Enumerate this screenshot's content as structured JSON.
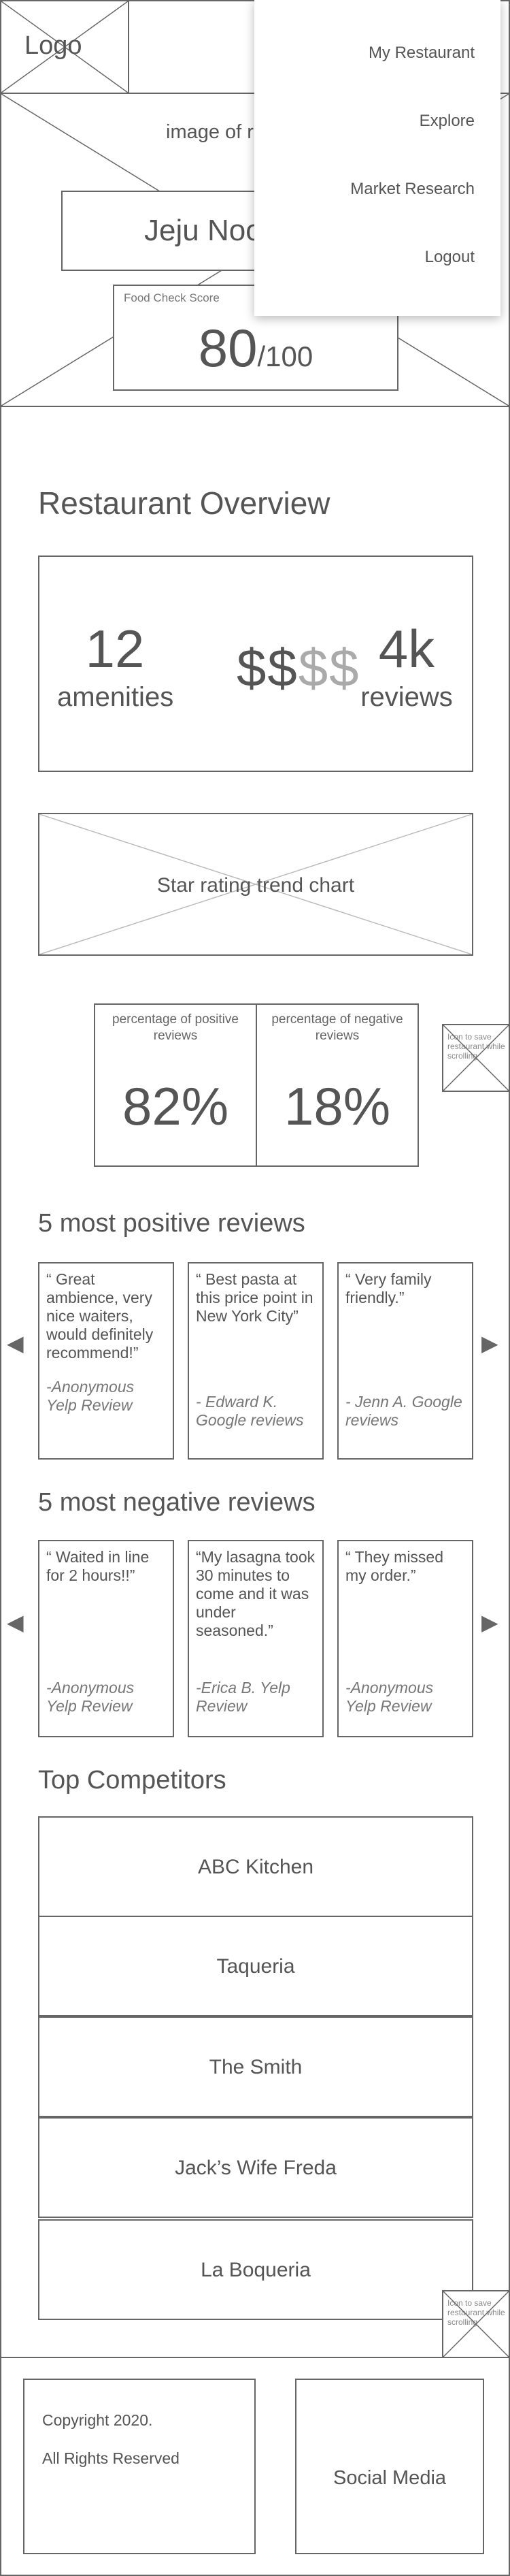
{
  "header": {
    "logo": "Logo",
    "hero_caption": "image of restaurant",
    "restaurant_name": "Jeju Noodle Bar",
    "score_label": "Food Check Score",
    "score_value": "80",
    "score_denominator": "/100"
  },
  "nav_menu": {
    "items": [
      "My Restaurant",
      "Explore",
      "Market Research",
      "Logout"
    ]
  },
  "overview": {
    "title": "Restaurant Overview",
    "amenities_count": "12",
    "amenities_label": "amenities",
    "price_active": "$$",
    "price_inactive": "$$",
    "reviews_count": "4k",
    "reviews_label": "reviews",
    "trend_chart_label": "Star rating trend chart"
  },
  "sentiment": {
    "positive_label": "percentage of positive reviews",
    "positive_value": "82%",
    "negative_label": "percentage of negative reviews",
    "negative_value": "18%"
  },
  "save_icon": {
    "label": "Icon to save restaurant while scrolling"
  },
  "positive_reviews": {
    "title": "5 most positive reviews",
    "items": [
      {
        "quote": "“ Great ambience, very nice waiters, would definitely recommend!”",
        "author": "-Anonymous Yelp Review"
      },
      {
        "quote": "“ Best pasta at this price point in New York City”",
        "author": "- Edward K. Google reviews"
      },
      {
        "quote": "“ Very family friendly.”",
        "author": "- Jenn A. Google reviews"
      }
    ]
  },
  "negative_reviews": {
    "title": "5 most negative reviews",
    "items": [
      {
        "quote": "“ Waited in line for 2 hours!!”",
        "author": "-Anonymous Yelp Review"
      },
      {
        "quote": "“My lasagna took 30 minutes to come and it was under seasoned.”",
        "author": "-Erica B. Yelp Review"
      },
      {
        "quote": "“ They missed my order.”",
        "author": "-Anonymous Yelp Review"
      }
    ]
  },
  "arrows": {
    "left": "◀",
    "right": "▶"
  },
  "competitors": {
    "title": "Top Competitors",
    "items": [
      "ABC Kitchen",
      "Taqueria",
      "The Smith",
      "Jack’s Wife Freda",
      "La Boqueria"
    ]
  },
  "footer": {
    "copyright_line1": "Copyright 2020.",
    "copyright_line2": "All Rights Reserved",
    "social": "Social Media"
  }
}
